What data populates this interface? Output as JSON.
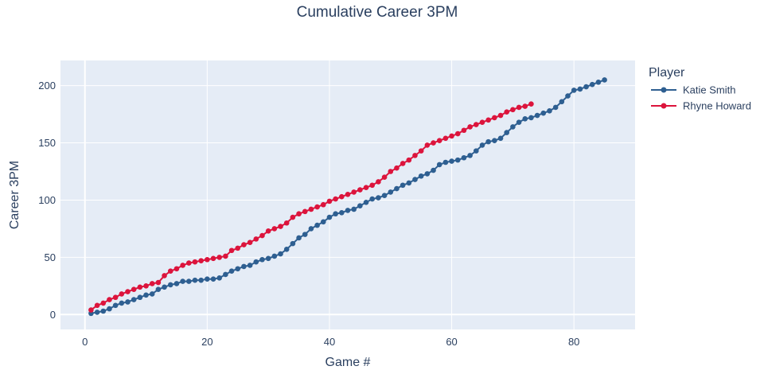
{
  "chart_data": {
    "type": "line",
    "title": "Cumulative Career 3PM",
    "xlabel": "Game #",
    "ylabel": "Career 3PM",
    "xlim": [
      -4,
      90
    ],
    "ylim": [
      -13,
      222
    ],
    "xticks": [
      0,
      20,
      40,
      60,
      80
    ],
    "yticks": [
      0,
      50,
      100,
      150,
      200
    ],
    "grid": true,
    "legend": {
      "title": "Player",
      "position": "top-right"
    },
    "series": [
      {
        "name": "Katie Smith",
        "color": "#2e5f91",
        "x": [
          1,
          2,
          3,
          4,
          5,
          6,
          7,
          8,
          9,
          10,
          11,
          12,
          13,
          14,
          15,
          16,
          17,
          18,
          19,
          20,
          21,
          22,
          23,
          24,
          25,
          26,
          27,
          28,
          29,
          30,
          31,
          32,
          33,
          34,
          35,
          36,
          37,
          38,
          39,
          40,
          41,
          42,
          43,
          44,
          45,
          46,
          47,
          48,
          49,
          50,
          51,
          52,
          53,
          54,
          55,
          56,
          57,
          58,
          59,
          60,
          61,
          62,
          63,
          64,
          65,
          66,
          67,
          68,
          69,
          70,
          71,
          72,
          73,
          74,
          75,
          76,
          77,
          78,
          79,
          80,
          81,
          82,
          83,
          84,
          85
        ],
        "y": [
          1,
          2,
          3,
          5,
          8,
          10,
          11,
          13,
          15,
          17,
          18,
          22,
          24,
          26,
          27,
          29,
          29,
          30,
          30,
          31,
          31,
          32,
          35,
          38,
          40,
          42,
          43,
          46,
          48,
          49,
          51,
          53,
          57,
          62,
          67,
          70,
          75,
          78,
          81,
          85,
          88,
          89,
          91,
          92,
          95,
          98,
          101,
          102,
          104,
          107,
          110,
          113,
          115,
          118,
          121,
          123,
          126,
          131,
          133,
          134,
          135,
          137,
          139,
          143,
          148,
          151,
          152,
          154,
          159,
          164,
          168,
          171,
          172,
          174,
          176,
          178,
          181,
          186,
          191,
          196,
          197,
          199,
          201,
          203,
          205
        ]
      },
      {
        "name": "Rhyne Howard",
        "color": "#dc143c",
        "x": [
          1,
          2,
          3,
          4,
          5,
          6,
          7,
          8,
          9,
          10,
          11,
          12,
          13,
          14,
          15,
          16,
          17,
          18,
          19,
          20,
          21,
          22,
          23,
          24,
          25,
          26,
          27,
          28,
          29,
          30,
          31,
          32,
          33,
          34,
          35,
          36,
          37,
          38,
          39,
          40,
          41,
          42,
          43,
          44,
          45,
          46,
          47,
          48,
          49,
          50,
          51,
          52,
          53,
          54,
          55,
          56,
          57,
          58,
          59,
          60,
          61,
          62,
          63,
          64,
          65,
          66,
          67,
          68,
          69,
          70,
          71,
          72,
          73
        ],
        "y": [
          4,
          8,
          10,
          13,
          15,
          18,
          20,
          22,
          24,
          25,
          27,
          28,
          34,
          38,
          40,
          43,
          45,
          46,
          47,
          48,
          49,
          50,
          51,
          56,
          58,
          61,
          63,
          66,
          69,
          73,
          75,
          77,
          80,
          85,
          88,
          90,
          92,
          94,
          96,
          99,
          101,
          103,
          105,
          107,
          109,
          111,
          113,
          116,
          120,
          125,
          128,
          132,
          135,
          139,
          143,
          148,
          150,
          152,
          154,
          156,
          158,
          161,
          164,
          166,
          168,
          170,
          172,
          174,
          177,
          179,
          181,
          182,
          184
        ]
      }
    ]
  }
}
